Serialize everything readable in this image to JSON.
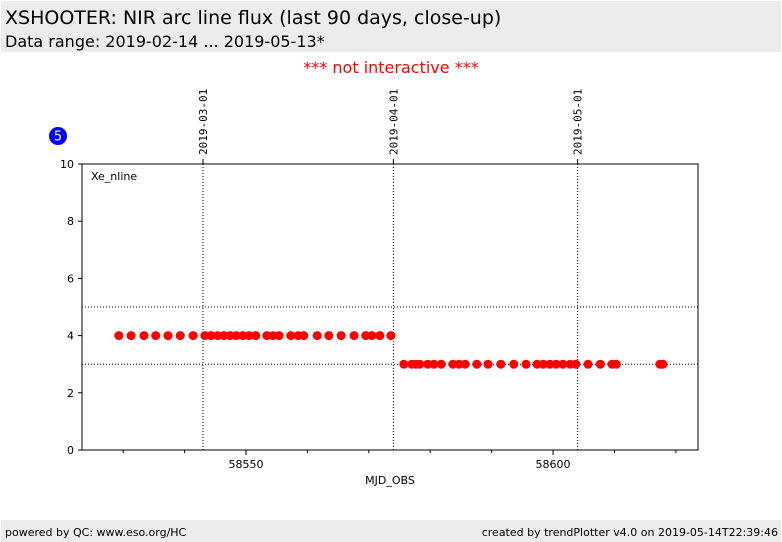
{
  "header": {
    "title": "XSHOOTER: NIR arc line flux (last 90 days, close-up)",
    "subtitle": "Data range: 2019-02-14 ... 2019-05-13*"
  },
  "notice": "*** not interactive ***",
  "badge": "5",
  "chart_data": {
    "type": "scatter",
    "xlabel": "MJD_OBS",
    "xlim": [
      58523.3,
      58623.6
    ],
    "ylim": [
      0,
      10
    ],
    "xticks": [
      58550,
      58600
    ],
    "xminorticks": [
      58530,
      58540,
      58560,
      58570,
      58580,
      58590,
      58610,
      58620
    ],
    "yticks": [
      0,
      2,
      4,
      6,
      8,
      10
    ],
    "top_ticks": [
      {
        "value": 58543,
        "label": "2019-03-01"
      },
      {
        "value": 58574,
        "label": "2019-04-01"
      },
      {
        "value": 58604,
        "label": "2019-05-01"
      }
    ],
    "hlines": [
      5,
      3
    ],
    "series": [
      {
        "name": "Xe_nline",
        "color": "#ff0000",
        "x": [
          58529.3,
          58531.3,
          58533.4,
          58535.3,
          58537.3,
          58539.3,
          58541.4,
          58543.3,
          58544.3,
          58545.4,
          58546.4,
          58547.4,
          58548.4,
          58549.5,
          58550.5,
          58551.6,
          58553.4,
          58554.4,
          58555.4,
          58557.3,
          58558.5,
          58559.4,
          58561.6,
          58563.5,
          58565.5,
          58567.6,
          58569.5,
          58570.5,
          58571.8,
          58573.6,
          58575.7,
          58577.0,
          58577.7,
          58578.3,
          58579.6,
          58580.6,
          58581.8,
          58583.7,
          58584.7,
          58585.7,
          58587.6,
          58589.4,
          58591.5,
          58593.6,
          58595.6,
          58597.4,
          58598.4,
          58599.5,
          58600.5,
          58601.6,
          58602.8,
          58603.7,
          58605.7,
          58607.7,
          58609.6,
          58610.3,
          58617.4,
          58617.9
        ],
        "values": [
          4,
          4,
          4,
          4,
          4,
          4,
          4,
          4,
          4,
          4,
          4,
          4,
          4,
          4,
          4,
          4,
          4,
          4,
          4,
          4,
          4,
          4,
          4,
          4,
          4,
          4,
          4,
          4,
          4,
          4,
          3,
          3,
          3,
          3,
          3,
          3,
          3,
          3,
          3,
          3,
          3,
          3,
          3,
          3,
          3,
          3,
          3,
          3,
          3,
          3,
          3,
          3,
          3,
          3,
          3,
          3,
          3,
          3
        ]
      }
    ]
  },
  "footer": {
    "left": "powered by QC: www.eso.org/HC",
    "right": "created by trendPlotter v4.0 on 2019-05-14T22:39:46"
  }
}
